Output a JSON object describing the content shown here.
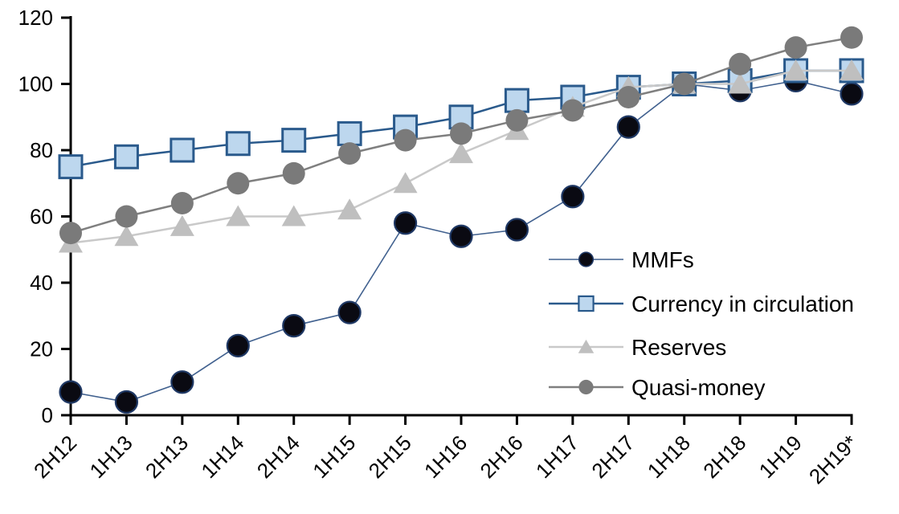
{
  "chart_data": {
    "type": "line",
    "title": "",
    "xlabel": "",
    "ylabel": "",
    "categories": [
      "2H12",
      "1H13",
      "2H13",
      "1H14",
      "2H14",
      "1H15",
      "2H15",
      "1H16",
      "2H16",
      "1H17",
      "2H17",
      "1H18",
      "2H18",
      "1H19",
      "2H19*"
    ],
    "series": [
      {
        "name": "MMFs",
        "marker": "circle-black",
        "line_color": "#41618f",
        "line_width": 1.6,
        "marker_fill": "#0a0a12",
        "marker_stroke": "#1f3864",
        "values": [
          7,
          4,
          10,
          21,
          27,
          31,
          58,
          54,
          56,
          66,
          87,
          100,
          98,
          101,
          97
        ]
      },
      {
        "name": "Currency in circulation",
        "marker": "square",
        "line_color": "#2a5a8c",
        "line_width": 2.5,
        "marker_fill": "#bdd7ee",
        "marker_stroke": "#2a5a8c",
        "values": [
          75,
          78,
          80,
          82,
          83,
          85,
          87,
          90,
          95,
          96,
          99,
          100,
          101,
          104,
          104
        ]
      },
      {
        "name": "Reserves",
        "marker": "triangle",
        "line_color": "#c9c9c9",
        "line_width": 2.5,
        "marker_fill": "#bfbfbf",
        "marker_stroke": "#bfbfbf",
        "values": [
          52,
          54,
          57,
          60,
          60,
          62,
          70,
          79,
          86,
          93,
          99,
          100,
          100,
          104,
          104
        ]
      },
      {
        "name": "Quasi-money",
        "marker": "circle-gray",
        "line_color": "#7f7f7f",
        "line_width": 2.5,
        "marker_fill": "#7a7a7a",
        "marker_stroke": "#7f7f7f",
        "values": [
          55,
          60,
          64,
          70,
          73,
          79,
          83,
          85,
          89,
          92,
          96,
          100,
          106,
          111,
          114
        ]
      }
    ],
    "ylim": [
      0,
      120
    ],
    "y_ticks": [
      0,
      20,
      40,
      60,
      80,
      100,
      120
    ],
    "grid": false,
    "legend_position": "middle-right",
    "axis_color": "#000000",
    "background_color": "#ffffff"
  }
}
